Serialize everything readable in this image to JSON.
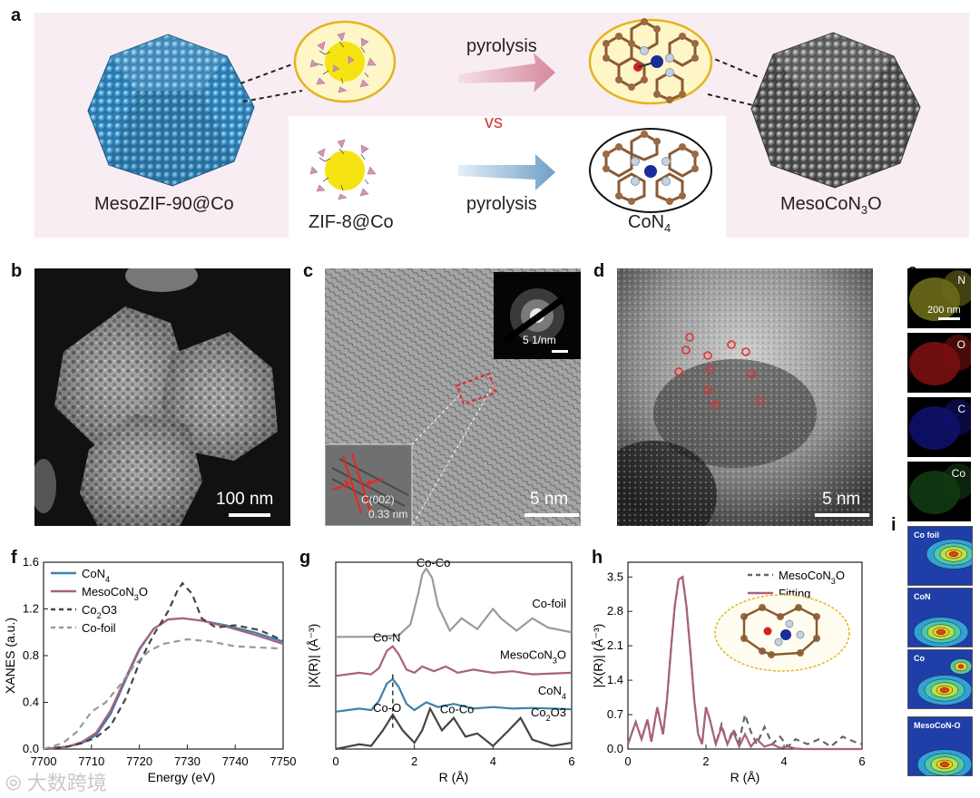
{
  "panels": {
    "a": "a",
    "b": "b",
    "c": "c",
    "d": "d",
    "e": "e",
    "f": "f",
    "g": "g",
    "h": "h",
    "i": "i"
  },
  "scheme": {
    "meso_label": "MesoZIF-90@Co",
    "zif_label": "ZIF-8@Co",
    "pyrolysis_top": "pyrolysis",
    "pyrolysis_bottom": "pyrolysis",
    "vs": "vs",
    "con4_main": "CoN",
    "con4_sub": "4",
    "mesocon_main": "MesoCoN",
    "mesocon_sub": "3",
    "mesocon_tail": "O"
  },
  "micro": {
    "b_scale": "100 nm",
    "c_scale": "5 nm",
    "c_saed": "5 1/nm",
    "c_plane": "C(002)",
    "c_spacing": "0.33 nm",
    "d_scale": "5 nm",
    "e_maps": [
      "N",
      "O",
      "C",
      "Co"
    ],
    "e_scale": "200 nm",
    "e_colors": [
      "#6a6a1a",
      "#7a1010",
      "#10106a",
      "#123a12"
    ]
  },
  "wavelet_titles": [
    "Co foil",
    "CoN",
    "Co",
    "MesoCoN-O"
  ],
  "watermark": "大数跨境",
  "chart_data": [
    {
      "type": "line",
      "panel": "f",
      "xlabel": "Energy (eV)",
      "ylabel": "XANES (a.u.)",
      "xlim": [
        7700,
        7750
      ],
      "ylim": [
        0,
        1.6
      ],
      "xticks": [
        "7700",
        "7710",
        "7720",
        "7730",
        "7740",
        "7750"
      ],
      "yticks": [
        "0.0",
        "0.4",
        "0.8",
        "1.2",
        "1.6"
      ],
      "legend_position": "top-left",
      "legend": [
        {
          "main": "CoN",
          "sub": "4",
          "tail": ""
        },
        {
          "main": "MesoCoN",
          "sub": "3",
          "tail": "O"
        },
        {
          "main": "Co",
          "sub": "2",
          "tail": "O3"
        },
        {
          "main": "Co-foil",
          "sub": "",
          "tail": ""
        }
      ],
      "series": [
        {
          "color": "#3d82a8",
          "dash": "",
          "x": [
            7700,
            7705,
            7708,
            7711,
            7714,
            7717,
            7720,
            7723,
            7726,
            7729,
            7733,
            7738,
            7744,
            7750
          ],
          "y": [
            0.0,
            0.02,
            0.05,
            0.12,
            0.3,
            0.58,
            0.85,
            1.03,
            1.11,
            1.12,
            1.1,
            1.06,
            1.0,
            0.92
          ]
        },
        {
          "color": "#a8607e",
          "dash": "",
          "x": [
            7700,
            7705,
            7708,
            7711,
            7714,
            7717,
            7720,
            7723,
            7726,
            7729,
            7733,
            7738,
            7744,
            7750
          ],
          "y": [
            0.0,
            0.02,
            0.06,
            0.14,
            0.33,
            0.6,
            0.86,
            1.03,
            1.11,
            1.12,
            1.1,
            1.05,
            0.98,
            0.9
          ]
        },
        {
          "color": "#444444",
          "dash": "7,5",
          "x": [
            7700,
            7705,
            7708,
            7711,
            7714,
            7717,
            7720,
            7723,
            7726,
            7728,
            7729,
            7731,
            7733,
            7736,
            7740,
            7745,
            7750
          ],
          "y": [
            0.0,
            0.02,
            0.05,
            0.1,
            0.2,
            0.42,
            0.74,
            0.98,
            1.18,
            1.36,
            1.42,
            1.33,
            1.12,
            1.04,
            1.06,
            1.02,
            0.93
          ]
        },
        {
          "color": "#999999",
          "dash": "7,5",
          "x": [
            7700,
            7704,
            7707,
            7710,
            7713,
            7716,
            7719,
            7722,
            7725,
            7730,
            7735,
            7740,
            7745,
            7750
          ],
          "y": [
            0.0,
            0.05,
            0.15,
            0.32,
            0.4,
            0.55,
            0.72,
            0.84,
            0.9,
            0.94,
            0.92,
            0.88,
            0.87,
            0.86
          ]
        }
      ]
    },
    {
      "type": "line",
      "panel": "g",
      "xlabel": "R (Å)",
      "ylabel": "|X(R)| (Å⁻³)",
      "xlim": [
        0,
        6
      ],
      "xticks": [
        "0",
        "2",
        "4",
        "6"
      ],
      "annotations": [
        "Co-Co",
        "Co-N",
        "Co-O",
        "Co-Co"
      ],
      "series_labels": [
        {
          "main": "Co-foil",
          "sub": "",
          "tail": ""
        },
        {
          "main": "MesoCoN",
          "sub": "3",
          "tail": "O"
        },
        {
          "main": "CoN",
          "sub": "4",
          "tail": ""
        },
        {
          "main": "Co",
          "sub": "2",
          "tail": "O3"
        }
      ],
      "series": [
        {
          "color": "#9a9a9a",
          "offset": 3.6,
          "x": [
            0,
            1.0,
            1.6,
            1.9,
            2.1,
            2.2,
            2.3,
            2.45,
            2.6,
            2.9,
            3.2,
            3.6,
            4.0,
            4.2,
            4.6,
            5.0,
            5.4,
            6.0
          ],
          "y": [
            0,
            0.01,
            0.05,
            0.4,
            1.4,
            2.0,
            2.2,
            1.9,
            1.0,
            0.2,
            0.6,
            0.25,
            0.9,
            0.6,
            0.2,
            0.6,
            0.3,
            0.15
          ]
        },
        {
          "color": "#a8607e",
          "offset": 2.35,
          "x": [
            0,
            0.6,
            0.9,
            1.1,
            1.3,
            1.45,
            1.6,
            1.8,
            2.0,
            2.2,
            2.5,
            2.8,
            3.1,
            3.5,
            4.0,
            4.5,
            5.0,
            6.0
          ],
          "y": [
            0,
            0.1,
            0.05,
            0.25,
            0.8,
            0.95,
            0.7,
            0.2,
            0.1,
            0.3,
            0.15,
            0.3,
            0.1,
            0.2,
            0.1,
            0.15,
            0.05,
            0.1
          ]
        },
        {
          "color": "#3d82a8",
          "offset": 1.2,
          "x": [
            0,
            0.6,
            0.9,
            1.1,
            1.3,
            1.45,
            1.6,
            1.8,
            2.0,
            2.3,
            2.6,
            3.0,
            3.5,
            4.0,
            4.5,
            5.0,
            6.0
          ],
          "y": [
            0,
            0.1,
            0.05,
            0.35,
            0.9,
            1.05,
            0.8,
            0.25,
            0.05,
            0.3,
            0.15,
            0.25,
            0.1,
            0.15,
            0.1,
            0.12,
            0.08
          ]
        },
        {
          "color": "#444444",
          "offset": 0.0,
          "x": [
            0,
            0.6,
            0.9,
            1.2,
            1.45,
            1.7,
            2.0,
            2.2,
            2.4,
            2.7,
            3.0,
            3.3,
            3.6,
            4.0,
            4.4,
            4.7,
            5.0,
            5.5,
            6.0
          ],
          "y": [
            0,
            0.15,
            0.1,
            0.6,
            1.1,
            0.6,
            0.2,
            0.6,
            1.3,
            0.6,
            1.0,
            0.4,
            0.5,
            0.1,
            0.6,
            1.0,
            0.3,
            0.1,
            0.2
          ]
        }
      ]
    },
    {
      "type": "line",
      "panel": "h",
      "xlabel": "R (Å)",
      "ylabel": "|X(R)| (Å⁻³)",
      "xlim": [
        0,
        6
      ],
      "ylim": [
        0,
        3.8
      ],
      "xticks": [
        "0",
        "2",
        "4",
        "6"
      ],
      "yticks": [
        "0.0",
        "0.7",
        "1.4",
        "2.1",
        "2.8",
        "3.5"
      ],
      "legend_position": "top-right",
      "legend": [
        {
          "main": "MesoCoN",
          "sub": "3",
          "tail": "O"
        },
        {
          "main": "Fitting",
          "sub": "",
          "tail": ""
        }
      ],
      "series": [
        {
          "color": "#666666",
          "dash": "7,5",
          "x": [
            0,
            0.2,
            0.35,
            0.5,
            0.6,
            0.75,
            0.9,
            1.0,
            1.1,
            1.2,
            1.3,
            1.4,
            1.5,
            1.6,
            1.7,
            1.8,
            1.9,
            2.0,
            2.1,
            2.25,
            2.4,
            2.55,
            2.7,
            2.85,
            3.0,
            3.15,
            3.3,
            3.5,
            3.7,
            3.9,
            4.1,
            4.3,
            4.6,
            4.9,
            5.2,
            5.5,
            5.8,
            6.0
          ],
          "y": [
            0.1,
            0.55,
            0.2,
            0.6,
            0.15,
            0.85,
            0.3,
            1.0,
            2.0,
            2.9,
            3.45,
            3.5,
            2.9,
            2.0,
            1.0,
            0.3,
            0.1,
            0.85,
            0.6,
            0.1,
            0.5,
            0.1,
            0.4,
            0.15,
            0.7,
            0.35,
            0.1,
            0.45,
            0.1,
            0.25,
            0.05,
            0.2,
            0.1,
            0.2,
            0.05,
            0.25,
            0.15,
            0.1
          ]
        },
        {
          "color": "#a8607e",
          "dash": "",
          "x": [
            0,
            0.2,
            0.35,
            0.5,
            0.6,
            0.75,
            0.9,
            1.0,
            1.1,
            1.2,
            1.3,
            1.4,
            1.5,
            1.6,
            1.7,
            1.8,
            1.9,
            2.0,
            2.1,
            2.25,
            2.4,
            2.55,
            2.7,
            2.85,
            3.0,
            3.15,
            3.3,
            3.5,
            3.7,
            3.9,
            4.1,
            4.3,
            4.5,
            5.0,
            6.0
          ],
          "y": [
            0.1,
            0.55,
            0.2,
            0.6,
            0.15,
            0.85,
            0.3,
            1.0,
            2.0,
            2.9,
            3.45,
            3.5,
            2.9,
            2.0,
            1.0,
            0.3,
            0.1,
            0.85,
            0.6,
            0.1,
            0.45,
            0.1,
            0.35,
            0.05,
            0.3,
            0.05,
            0.2,
            0.05,
            0.1,
            0.02,
            0.05,
            0.01,
            0.0,
            0.0,
            0.0
          ]
        }
      ]
    }
  ]
}
